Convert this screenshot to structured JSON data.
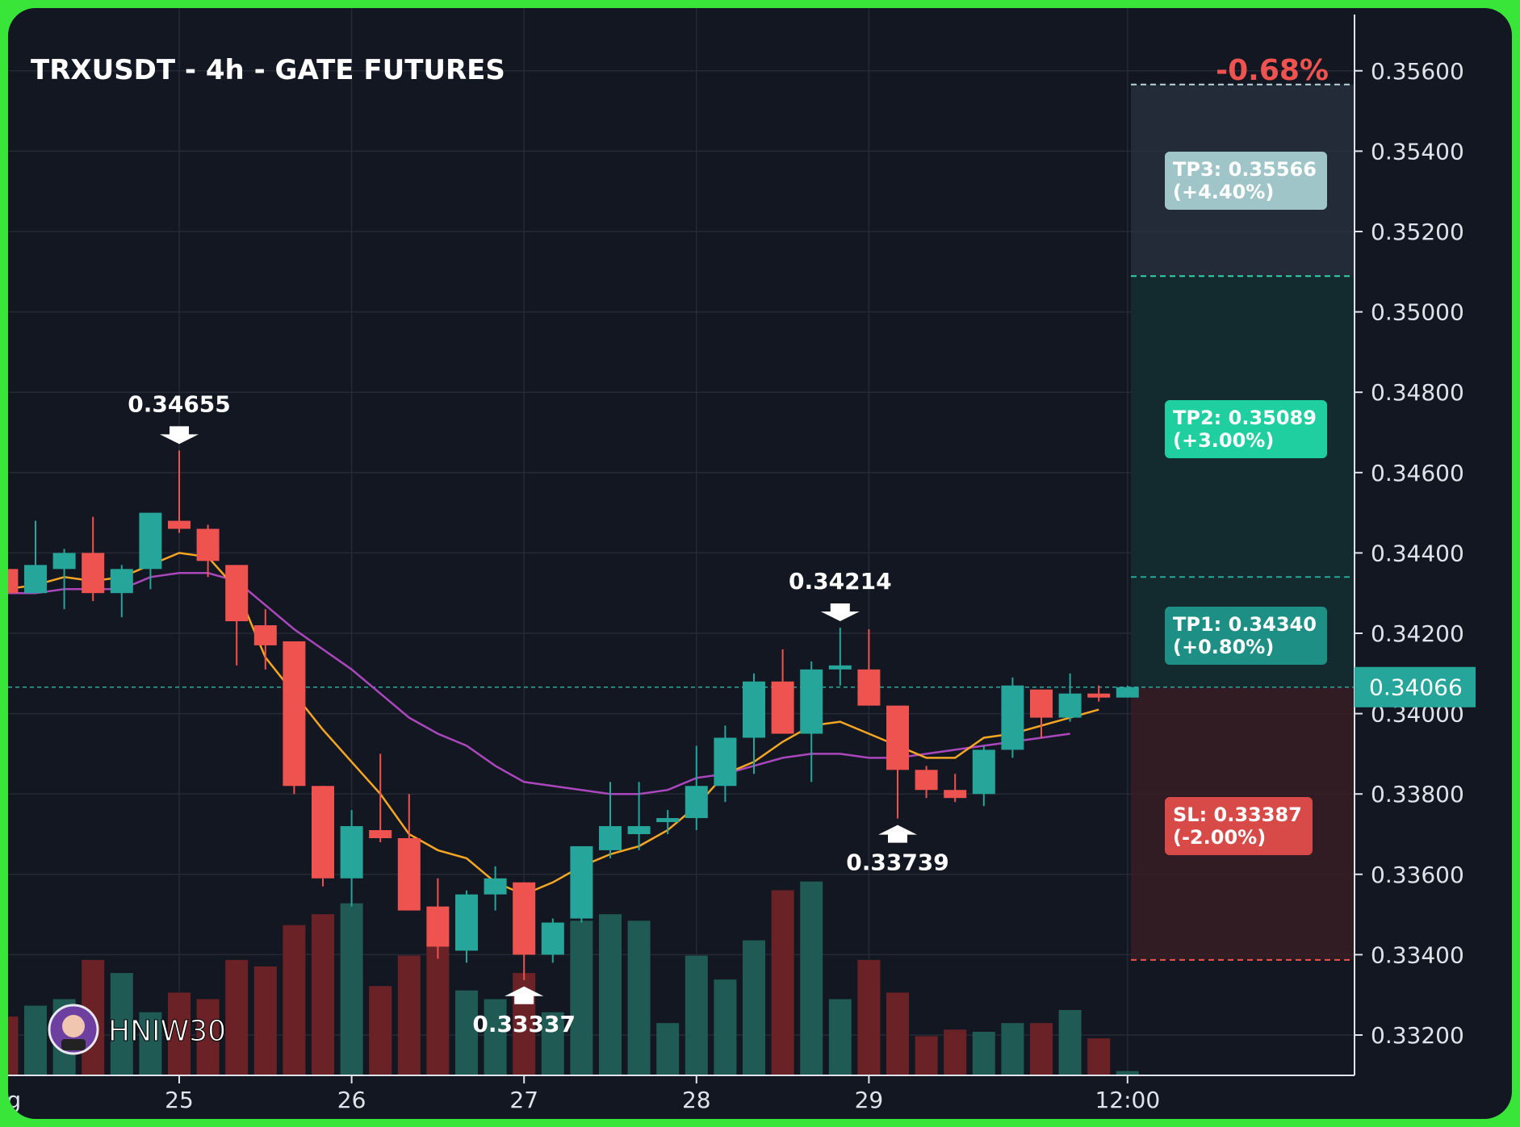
{
  "chart_data": {
    "type": "candlestick",
    "title": "TRXUSDT - 4h - GATE FUTURES",
    "change_label": "-0.68%",
    "current_price": 0.34066,
    "current_price_label": "0.34066",
    "watermark": "HNIW30",
    "y_ticks": [
      "0.33200",
      "0.33400",
      "0.33600",
      "0.33800",
      "0.34000",
      "0.34200",
      "0.34400",
      "0.34600",
      "0.34800",
      "0.35000",
      "0.35200",
      "0.35400",
      "0.35600"
    ],
    "y_tick_values": [
      0.332,
      0.334,
      0.336,
      0.338,
      0.34,
      0.342,
      0.344,
      0.346,
      0.348,
      0.35,
      0.352,
      0.354,
      0.356
    ],
    "x_ticks": [
      "ug",
      "25",
      "26",
      "27",
      "28",
      "29",
      "12:00"
    ],
    "x_tick_index": [
      -6,
      0,
      6,
      12,
      18,
      24,
      33
    ],
    "colors": {
      "up": "#26a69a",
      "down": "#ef5350",
      "ema_fast": "#f5a623",
      "ema_slow": "#ab47bc",
      "tp3": "#9fc5c8",
      "tp2": "#1fcf9f",
      "tp1": "#1e8f84",
      "sl": "#d84a48"
    },
    "candles": [
      {
        "o": 0.3436,
        "h": 0.3436,
        "l": 0.343,
        "c": 0.343
      },
      {
        "o": 0.343,
        "h": 0.3448,
        "l": 0.343,
        "c": 0.3437
      },
      {
        "o": 0.3436,
        "h": 0.3441,
        "l": 0.3426,
        "c": 0.344
      },
      {
        "o": 0.344,
        "h": 0.3449,
        "l": 0.3428,
        "c": 0.343
      },
      {
        "o": 0.343,
        "h": 0.3437,
        "l": 0.3424,
        "c": 0.3436
      },
      {
        "o": 0.3436,
        "h": 0.345,
        "l": 0.3431,
        "c": 0.345
      },
      {
        "o": 0.3448,
        "h": 0.34655,
        "l": 0.3445,
        "c": 0.3446
      },
      {
        "o": 0.3446,
        "h": 0.3447,
        "l": 0.3434,
        "c": 0.3438
      },
      {
        "o": 0.3437,
        "h": 0.3437,
        "l": 0.3412,
        "c": 0.3423
      },
      {
        "o": 0.3422,
        "h": 0.3426,
        "l": 0.3411,
        "c": 0.3417
      },
      {
        "o": 0.3418,
        "h": 0.3418,
        "l": 0.338,
        "c": 0.3382
      },
      {
        "o": 0.3382,
        "h": 0.3382,
        "l": 0.3357,
        "c": 0.3359
      },
      {
        "o": 0.3359,
        "h": 0.3376,
        "l": 0.3352,
        "c": 0.3372
      },
      {
        "o": 0.3371,
        "h": 0.339,
        "l": 0.3368,
        "c": 0.3369
      },
      {
        "o": 0.3369,
        "h": 0.338,
        "l": 0.3351,
        "c": 0.3351
      },
      {
        "o": 0.3352,
        "h": 0.3359,
        "l": 0.3339,
        "c": 0.3342
      },
      {
        "o": 0.3341,
        "h": 0.3356,
        "l": 0.3338,
        "c": 0.3355
      },
      {
        "o": 0.3355,
        "h": 0.3362,
        "l": 0.3351,
        "c": 0.3359
      },
      {
        "o": 0.3358,
        "h": 0.3358,
        "l": 0.33337,
        "c": 0.334
      },
      {
        "o": 0.334,
        "h": 0.3349,
        "l": 0.3338,
        "c": 0.3348
      },
      {
        "o": 0.3349,
        "h": 0.3367,
        "l": 0.3348,
        "c": 0.3367
      },
      {
        "o": 0.3366,
        "h": 0.3383,
        "l": 0.3364,
        "c": 0.3372
      },
      {
        "o": 0.337,
        "h": 0.3383,
        "l": 0.3366,
        "c": 0.3372
      },
      {
        "o": 0.3373,
        "h": 0.3376,
        "l": 0.337,
        "c": 0.3374
      },
      {
        "o": 0.3374,
        "h": 0.3392,
        "l": 0.3371,
        "c": 0.3382
      },
      {
        "o": 0.3382,
        "h": 0.3397,
        "l": 0.3378,
        "c": 0.3394
      },
      {
        "o": 0.3394,
        "h": 0.341,
        "l": 0.3385,
        "c": 0.3408
      },
      {
        "o": 0.3408,
        "h": 0.3416,
        "l": 0.3395,
        "c": 0.3395
      },
      {
        "o": 0.3395,
        "h": 0.3413,
        "l": 0.3383,
        "c": 0.3411
      },
      {
        "o": 0.3411,
        "h": 0.34214,
        "l": 0.3407,
        "c": 0.3412
      },
      {
        "o": 0.3411,
        "h": 0.3421,
        "l": 0.3402,
        "c": 0.3402
      },
      {
        "o": 0.3402,
        "h": 0.3402,
        "l": 0.33739,
        "c": 0.3386
      },
      {
        "o": 0.3386,
        "h": 0.3387,
        "l": 0.3379,
        "c": 0.3381
      },
      {
        "o": 0.3381,
        "h": 0.3385,
        "l": 0.3378,
        "c": 0.3379
      },
      {
        "o": 0.338,
        "h": 0.3392,
        "l": 0.3377,
        "c": 0.3391
      },
      {
        "o": 0.3391,
        "h": 0.3409,
        "l": 0.3389,
        "c": 0.3407
      },
      {
        "o": 0.3406,
        "h": 0.3406,
        "l": 0.3394,
        "c": 0.3399
      },
      {
        "o": 0.3399,
        "h": 0.341,
        "l": 0.3398,
        "c": 0.3405
      },
      {
        "o": 0.3405,
        "h": 0.3407,
        "l": 0.3403,
        "c": 0.3404
      },
      {
        "o": 0.3404,
        "h": 0.3407,
        "l": 0.3404,
        "c": 0.34066
      }
    ],
    "volume": [
      0.27,
      0.32,
      0.35,
      0.53,
      0.47,
      0.29,
      0.38,
      0.35,
      0.53,
      0.5,
      0.69,
      0.74,
      0.79,
      0.41,
      0.55,
      0.62,
      0.39,
      0.35,
      0.47,
      0.29,
      0.71,
      0.74,
      0.71,
      0.24,
      0.55,
      0.44,
      0.62,
      0.85,
      0.89,
      0.35,
      0.53,
      0.38,
      0.18,
      0.21,
      0.2,
      0.24,
      0.24,
      0.3,
      0.17,
      0.02
    ],
    "ema_fast": [
      0.3431,
      0.3432,
      0.3434,
      0.3433,
      0.3434,
      0.3437,
      0.344,
      0.3439,
      0.3431,
      0.3414,
      0.3405,
      0.3396,
      0.3388,
      0.338,
      0.337,
      0.3366,
      0.3364,
      0.3358,
      0.3355,
      0.3358,
      0.3362,
      0.3365,
      0.3367,
      0.3371,
      0.3377,
      0.3385,
      0.3388,
      0.3393,
      0.3397,
      0.3398,
      0.3395,
      0.3392,
      0.3389,
      0.3389,
      0.3394,
      0.3395,
      0.3397,
      0.3399,
      0.3401
    ],
    "ema_slow": [
      0.343,
      0.343,
      0.3431,
      0.3431,
      0.3431,
      0.3434,
      0.3435,
      0.3435,
      0.3433,
      0.3427,
      0.3421,
      0.3416,
      0.3411,
      0.3405,
      0.3399,
      0.3395,
      0.3392,
      0.3387,
      0.3383,
      0.3382,
      0.3381,
      0.338,
      0.338,
      0.3381,
      0.3384,
      0.3385,
      0.3387,
      0.3389,
      0.339,
      0.339,
      0.3389,
      0.3389,
      0.339,
      0.3391,
      0.3392,
      0.3393,
      0.3394,
      0.3395
    ],
    "peak_labels": [
      {
        "index": 6,
        "value": 0.34655,
        "text": "0.34655",
        "dir": "high"
      },
      {
        "index": 18,
        "value": 0.33337,
        "text": "0.33337",
        "dir": "low"
      },
      {
        "index": 29,
        "value": 0.34214,
        "text": "0.34214",
        "dir": "high"
      },
      {
        "index": 31,
        "value": 0.33739,
        "text": "0.33739",
        "dir": "low"
      }
    ],
    "levels": [
      {
        "key": "tp3",
        "value": 0.35566,
        "line1": "TP3: 0.35566",
        "line2": "(+4.40%)"
      },
      {
        "key": "tp2",
        "value": 0.35089,
        "line1": "TP2: 0.35089",
        "line2": "(+3.00%)"
      },
      {
        "key": "tp1",
        "value": 0.3434,
        "line1": "TP1: 0.34340",
        "line2": "(+0.80%)"
      },
      {
        "key": "sl",
        "value": 0.33387,
        "line1": "SL: 0.33387",
        "line2": "(-2.00%)"
      }
    ]
  }
}
